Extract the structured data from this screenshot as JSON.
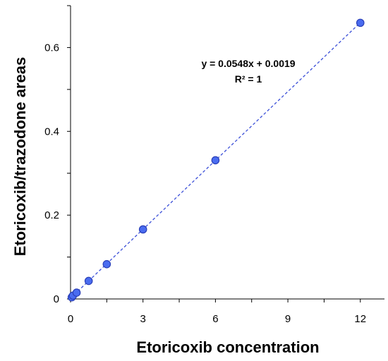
{
  "chart_data": {
    "type": "scatter",
    "title": "",
    "xlabel": "Etoricoxib concentration",
    "ylabel": "Etoricoxib/trazodone areas",
    "xlim": [
      0,
      13
    ],
    "ylim": [
      0,
      0.7
    ],
    "x_ticks": [
      0,
      3,
      6,
      9,
      12
    ],
    "x_tick_labels": [
      "0",
      "3",
      "6",
      "9",
      "12"
    ],
    "y_ticks": [
      0,
      0.2,
      0.4,
      0.6
    ],
    "y_tick_labels": [
      "0",
      "0.2",
      "0.4",
      "0.6"
    ],
    "grid": false,
    "series": [
      {
        "x": [
          0.05,
          0.1,
          0.25,
          0.75,
          1.5,
          3,
          6,
          12
        ],
        "y": [
          0.004,
          0.008,
          0.015,
          0.043,
          0.083,
          0.166,
          0.331,
          0.659
        ]
      }
    ],
    "trendline": {
      "slope": 0.0548,
      "intercept": 0.0019,
      "style": "dashed"
    },
    "annotations": [
      "y = 0.0548x + 0.0019",
      "R² = 1"
    ],
    "colors": {
      "marker_fill": "#4a6cf0",
      "marker_stroke": "#2a3fb8",
      "trendline": "#3b4fd8"
    }
  }
}
